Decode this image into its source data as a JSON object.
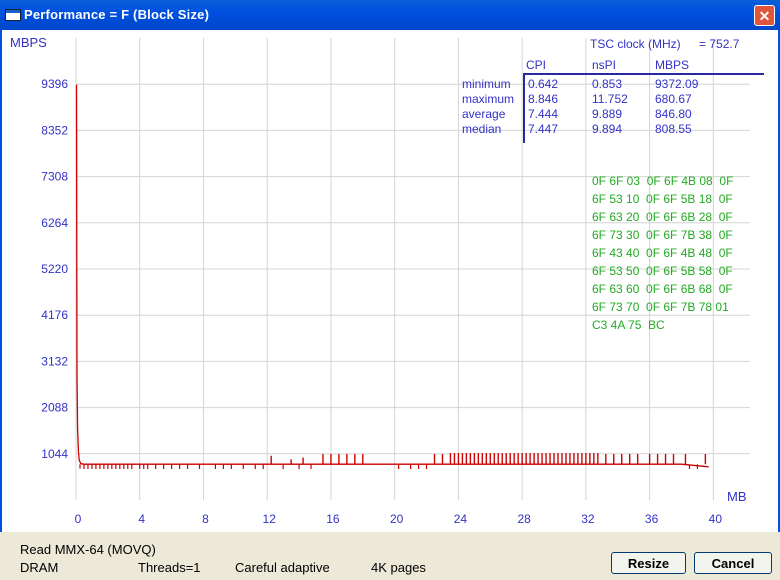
{
  "window": {
    "title": "Performance = F (Block Size)",
    "close_symbol": "✕"
  },
  "chart_data": {
    "type": "line",
    "ylabel": "MBPS",
    "xlabel": "MB",
    "y_ticks": [
      "9396",
      "8352",
      "7308",
      "6264",
      "5220",
      "4176",
      "3132",
      "2088",
      "1044"
    ],
    "x_ticks": [
      "0",
      "4",
      "8",
      "12",
      "16",
      "20",
      "24",
      "28",
      "32",
      "36",
      "40"
    ],
    "xlim": [
      0,
      42.3
    ],
    "ylim": [
      0,
      10440
    ],
    "grid": true,
    "color": "#cc0000",
    "series": [
      {
        "x": [
          0,
          0.03,
          0.06,
          0.1,
          0.15,
          0.2,
          0.3,
          0.5,
          1.0,
          2.0,
          4.0,
          8.0,
          12.0,
          16.0,
          20.0,
          24.0,
          28.0,
          32.0,
          36.0,
          38.0,
          39.7
        ],
        "values": [
          9372,
          9372,
          2800,
          1600,
          1100,
          900,
          820,
          810,
          810,
          810,
          809,
          808,
          808,
          808,
          808,
          808,
          808,
          808,
          808,
          808,
          750
        ]
      }
    ],
    "spikes": {
      "baseline": 808,
      "up": [
        {
          "x": 23.5,
          "y": 1060
        },
        {
          "x": 23.75,
          "y": 1060
        },
        {
          "x": 24.0,
          "y": 1060
        },
        {
          "x": 24.25,
          "y": 1060
        },
        {
          "x": 24.5,
          "y": 1060
        },
        {
          "x": 24.75,
          "y": 1060
        },
        {
          "x": 25.0,
          "y": 1060
        },
        {
          "x": 25.25,
          "y": 1060
        },
        {
          "x": 25.5,
          "y": 1060
        },
        {
          "x": 25.75,
          "y": 1060
        },
        {
          "x": 26.0,
          "y": 1060
        },
        {
          "x": 26.25,
          "y": 1060
        },
        {
          "x": 26.5,
          "y": 1060
        },
        {
          "x": 26.75,
          "y": 1060
        },
        {
          "x": 27.0,
          "y": 1060
        },
        {
          "x": 27.25,
          "y": 1060
        },
        {
          "x": 27.5,
          "y": 1060
        },
        {
          "x": 27.75,
          "y": 1060
        },
        {
          "x": 28.0,
          "y": 1060
        },
        {
          "x": 28.25,
          "y": 1060
        },
        {
          "x": 28.5,
          "y": 1060
        },
        {
          "x": 28.75,
          "y": 1060
        },
        {
          "x": 29.0,
          "y": 1060
        },
        {
          "x": 29.25,
          "y": 1060
        },
        {
          "x": 29.5,
          "y": 1060
        },
        {
          "x": 29.75,
          "y": 1060
        },
        {
          "x": 30.0,
          "y": 1060
        },
        {
          "x": 30.25,
          "y": 1060
        },
        {
          "x": 30.5,
          "y": 1060
        },
        {
          "x": 30.75,
          "y": 1060
        },
        {
          "x": 31.0,
          "y": 1060
        },
        {
          "x": 31.25,
          "y": 1060
        },
        {
          "x": 31.5,
          "y": 1060
        },
        {
          "x": 31.75,
          "y": 1060
        },
        {
          "x": 32.0,
          "y": 1060
        },
        {
          "x": 32.25,
          "y": 1060
        },
        {
          "x": 32.5,
          "y": 1060
        },
        {
          "x": 32.75,
          "y": 1060
        },
        {
          "x": 15.5,
          "y": 1040
        },
        {
          "x": 16.0,
          "y": 1040
        },
        {
          "x": 16.5,
          "y": 1040
        },
        {
          "x": 17.0,
          "y": 1040
        },
        {
          "x": 17.5,
          "y": 1040
        },
        {
          "x": 18.0,
          "y": 1040
        },
        {
          "x": 22.5,
          "y": 1040
        },
        {
          "x": 23.0,
          "y": 1040
        },
        {
          "x": 12.25,
          "y": 1000
        },
        {
          "x": 13.5,
          "y": 920
        },
        {
          "x": 14.25,
          "y": 960
        },
        {
          "x": 33.25,
          "y": 1040
        },
        {
          "x": 33.75,
          "y": 1040
        },
        {
          "x": 34.25,
          "y": 1040
        },
        {
          "x": 34.75,
          "y": 1040
        },
        {
          "x": 35.25,
          "y": 1040
        },
        {
          "x": 36.0,
          "y": 1040
        },
        {
          "x": 36.5,
          "y": 1040
        },
        {
          "x": 37.0,
          "y": 1040
        },
        {
          "x": 37.5,
          "y": 1040
        },
        {
          "x": 38.25,
          "y": 1040
        },
        {
          "x": 39.5,
          "y": 1040
        }
      ],
      "down": [
        {
          "x": 0.25,
          "y": 710
        },
        {
          "x": 0.5,
          "y": 700
        },
        {
          "x": 0.75,
          "y": 700
        },
        {
          "x": 1.0,
          "y": 700
        },
        {
          "x": 1.25,
          "y": 700
        },
        {
          "x": 1.5,
          "y": 700
        },
        {
          "x": 1.75,
          "y": 700
        },
        {
          "x": 2.0,
          "y": 700
        },
        {
          "x": 2.25,
          "y": 700
        },
        {
          "x": 2.5,
          "y": 700
        },
        {
          "x": 2.75,
          "y": 700
        },
        {
          "x": 3.0,
          "y": 700
        },
        {
          "x": 3.25,
          "y": 700
        },
        {
          "x": 3.5,
          "y": 700
        },
        {
          "x": 4.0,
          "y": 700
        },
        {
          "x": 4.25,
          "y": 700
        },
        {
          "x": 4.5,
          "y": 700
        },
        {
          "x": 5.0,
          "y": 700
        },
        {
          "x": 5.5,
          "y": 700
        },
        {
          "x": 6.0,
          "y": 700
        },
        {
          "x": 6.5,
          "y": 700
        },
        {
          "x": 7.0,
          "y": 700
        },
        {
          "x": 7.75,
          "y": 700
        },
        {
          "x": 8.75,
          "y": 700
        },
        {
          "x": 9.25,
          "y": 700
        },
        {
          "x": 9.75,
          "y": 700
        },
        {
          "x": 10.5,
          "y": 700
        },
        {
          "x": 11.25,
          "y": 700
        },
        {
          "x": 11.75,
          "y": 700
        },
        {
          "x": 13.0,
          "y": 700
        },
        {
          "x": 14.0,
          "y": 700
        },
        {
          "x": 14.75,
          "y": 700
        },
        {
          "x": 20.25,
          "y": 700
        },
        {
          "x": 21.0,
          "y": 700
        },
        {
          "x": 21.5,
          "y": 700
        },
        {
          "x": 22.0,
          "y": 700
        },
        {
          "x": 38.5,
          "y": 700
        },
        {
          "x": 39.0,
          "y": 700
        }
      ]
    }
  },
  "stats": {
    "tsc_label": "TSC clock (MHz)",
    "tsc_value": "= 752.7",
    "headers": [
      "CPI",
      "nsPI",
      "MBPS"
    ],
    "rows": [
      {
        "label": "minimum",
        "cpi": "0.642",
        "nspi": "0.853",
        "mbps": "9372.09"
      },
      {
        "label": "maximum",
        "cpi": "8.846",
        "nspi": "11.752",
        "mbps": "680.67"
      },
      {
        "label": "average",
        "cpi": "7.444",
        "nspi": "9.889",
        "mbps": "846.80"
      },
      {
        "label": "median",
        "cpi": "7.447",
        "nspi": "9.894",
        "mbps": "808.55"
      }
    ]
  },
  "hex_dump": [
    "0F 6F 03  0F 6F 4B 08  0F",
    "6F 53 10  0F 6F 5B 18  0F",
    "6F 63 20  0F 6F 6B 28  0F",
    "6F 73 30  0F 6F 7B 38  0F",
    "6F 43 40  0F 6F 4B 48  0F",
    "6F 53 50  0F 6F 5B 58  0F",
    "6F 63 60  0F 6F 6B 68  0F",
    "6F 73 70  0F 6F 7B 78 01",
    "C3 4A 75  BC"
  ],
  "footer": {
    "method": "Read MMX-64 (MOVQ)",
    "memory": "DRAM",
    "threads": "Threads=1",
    "mode": "Careful adaptive",
    "pages": "4K pages",
    "resize_label": "Resize",
    "cancel_label": "Cancel"
  },
  "colors": {
    "axis_text": "#3232c8",
    "grid": "#d4d4d4",
    "line": "#cc0000",
    "hex": "#22aa22",
    "titlebar": "#0050e0"
  }
}
